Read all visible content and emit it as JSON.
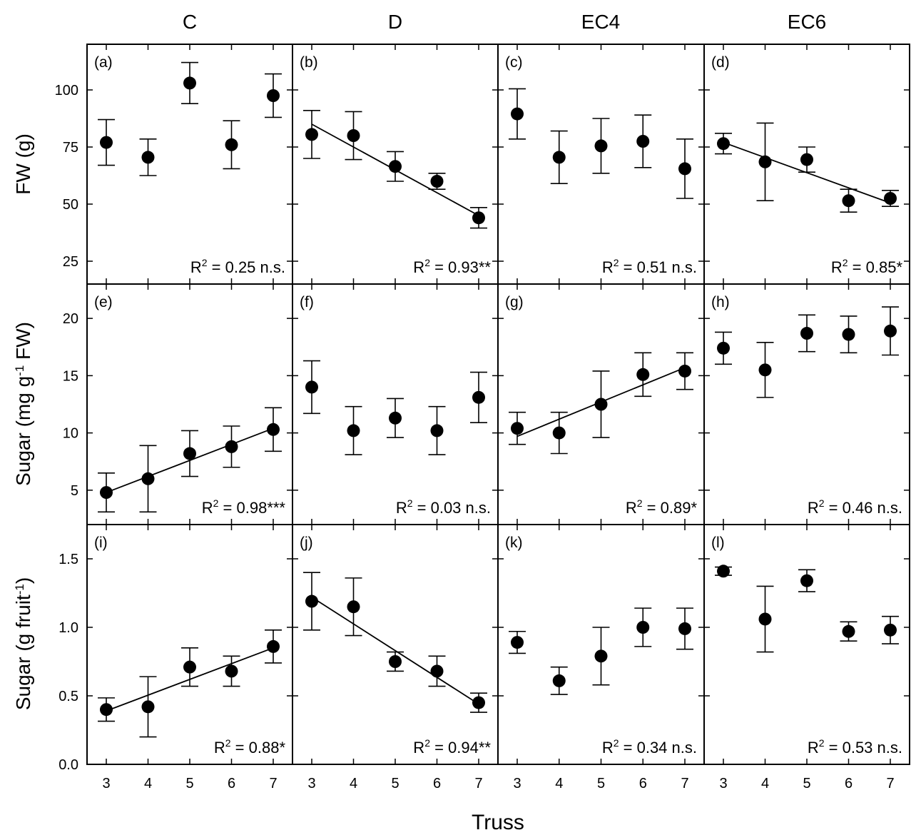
{
  "columns": [
    "C",
    "D",
    "EC4",
    "EC6"
  ],
  "x_axis": {
    "label": "Truss",
    "ticks": [
      3,
      4,
      5,
      6,
      7
    ]
  },
  "rows": [
    {
      "label": "FW (g)",
      "ylim": [
        15,
        120
      ],
      "ticks": [
        25,
        50,
        75,
        100
      ],
      "tick_labels": [
        "25",
        "50",
        "75",
        "100"
      ]
    },
    {
      "label_parts": [
        "Sugar (mg g",
        "-1",
        " FW)"
      ],
      "ylim": [
        2,
        23
      ],
      "ticks": [
        5,
        10,
        15,
        20
      ],
      "tick_labels": [
        "5",
        "10",
        "15",
        "20"
      ]
    },
    {
      "label_parts": [
        "Sugar (g fruit",
        "-1",
        ")"
      ],
      "ylim": [
        0,
        1.75
      ],
      "ticks": [
        0.0,
        0.5,
        1.0,
        1.5
      ],
      "tick_labels": [
        "0.0",
        "0.5",
        "1.0",
        "1.5"
      ]
    }
  ],
  "chart_data": [
    {
      "type": "scatter",
      "panel": "(a)",
      "column": "C",
      "ylabel": "FW (g)",
      "x": [
        3,
        4,
        5,
        6,
        7
      ],
      "y": [
        77,
        70.5,
        103,
        76,
        97.5
      ],
      "err": [
        10,
        8,
        9,
        10.5,
        9.5
      ],
      "fit": null,
      "r2_value": "= 0.25 n.s.",
      "r2_prefix": "R",
      "r2_sup": "2"
    },
    {
      "type": "scatter",
      "panel": "(b)",
      "column": "D",
      "ylabel": "FW (g)",
      "x": [
        3,
        4,
        5,
        6,
        7
      ],
      "y": [
        80.5,
        80,
        66.5,
        60,
        44
      ],
      "err": [
        10.5,
        10.5,
        6.5,
        3.5,
        4.5
      ],
      "fit": [
        [
          3,
          85
        ],
        [
          7,
          45
        ]
      ],
      "r2_value": "= 0.93**",
      "r2_prefix": "R",
      "r2_sup": "2"
    },
    {
      "type": "scatter",
      "panel": "(c)",
      "column": "EC4",
      "ylabel": "FW (g)",
      "x": [
        3,
        4,
        5,
        6,
        7
      ],
      "y": [
        89.5,
        70.5,
        75.5,
        77.5,
        65.5
      ],
      "err": [
        11,
        11.5,
        12,
        11.5,
        13
      ],
      "fit": null,
      "r2_value": "= 0.51 n.s.",
      "r2_prefix": "R",
      "r2_sup": "2"
    },
    {
      "type": "scatter",
      "panel": "(d)",
      "column": "EC6",
      "ylabel": "FW (g)",
      "x": [
        3,
        4,
        5,
        6,
        7
      ],
      "y": [
        76.5,
        68.5,
        69.5,
        51.5,
        52.5
      ],
      "err": [
        4.5,
        17,
        5.5,
        5,
        3.5
      ],
      "fit": [
        [
          3,
          77
        ],
        [
          7,
          50.5
        ]
      ],
      "r2_value": "= 0.85*",
      "r2_prefix": "R",
      "r2_sup": "2"
    },
    {
      "type": "scatter",
      "panel": "(e)",
      "column": "C",
      "ylabel": "Sugar (mg g-1 FW)",
      "x": [
        3,
        4,
        5,
        6,
        7
      ],
      "y": [
        4.8,
        6.0,
        8.2,
        8.8,
        10.3
      ],
      "err": [
        1.7,
        2.9,
        2.0,
        1.8,
        1.9
      ],
      "fit": [
        [
          3,
          4.8
        ],
        [
          7,
          10.4
        ]
      ],
      "r2_value": "= 0.98***",
      "r2_prefix": "R",
      "r2_sup": "2"
    },
    {
      "type": "scatter",
      "panel": "(f)",
      "column": "D",
      "ylabel": "Sugar (mg g-1 FW)",
      "x": [
        3,
        4,
        5,
        6,
        7
      ],
      "y": [
        14.0,
        10.2,
        11.3,
        10.2,
        13.1
      ],
      "err": [
        2.3,
        2.1,
        1.7,
        2.1,
        2.2
      ],
      "fit": null,
      "r2_value": "= 0.03 n.s.",
      "r2_prefix": "R",
      "r2_sup": "2"
    },
    {
      "type": "scatter",
      "panel": "(g)",
      "column": "EC4",
      "ylabel": "Sugar (mg g-1 FW)",
      "x": [
        3,
        4,
        5,
        6,
        7
      ],
      "y": [
        10.4,
        10.0,
        12.5,
        15.1,
        15.4
      ],
      "err": [
        1.4,
        1.8,
        2.9,
        1.9,
        1.6
      ],
      "fit": [
        [
          3,
          9.7
        ],
        [
          7,
          15.7
        ]
      ],
      "r2_value": "= 0.89*",
      "r2_prefix": "R",
      "r2_sup": "2"
    },
    {
      "type": "scatter",
      "panel": "(h)",
      "column": "EC6",
      "ylabel": "Sugar (mg g-1 FW)",
      "x": [
        3,
        4,
        5,
        6,
        7
      ],
      "y": [
        17.4,
        15.5,
        18.7,
        18.6,
        18.9
      ],
      "err": [
        1.4,
        2.4,
        1.6,
        1.6,
        2.1
      ],
      "fit": null,
      "r2_value": "= 0.46 n.s.",
      "r2_prefix": "R",
      "r2_sup": "2"
    },
    {
      "type": "scatter",
      "panel": "(i)",
      "column": "C",
      "ylabel": "Sugar (g fruit-1)",
      "x": [
        3,
        4,
        5,
        6,
        7
      ],
      "y": [
        0.4,
        0.42,
        0.71,
        0.68,
        0.86
      ],
      "err": [
        0.085,
        0.22,
        0.14,
        0.11,
        0.12
      ],
      "fit": [
        [
          3,
          0.39
        ],
        [
          7,
          0.85
        ]
      ],
      "r2_value": "= 0.88*",
      "r2_prefix": "R",
      "r2_sup": "2"
    },
    {
      "type": "scatter",
      "panel": "(j)",
      "column": "D",
      "ylabel": "Sugar (g fruit-1)",
      "x": [
        3,
        4,
        5,
        6,
        7
      ],
      "y": [
        1.19,
        1.15,
        0.75,
        0.68,
        0.45
      ],
      "err": [
        0.21,
        0.21,
        0.07,
        0.11,
        0.07
      ],
      "fit": [
        [
          3,
          1.22
        ],
        [
          7,
          0.44
        ]
      ],
      "r2_value": "= 0.94**",
      "r2_prefix": "R",
      "r2_sup": "2"
    },
    {
      "type": "scatter",
      "panel": "(k)",
      "column": "EC4",
      "ylabel": "Sugar (g fruit-1)",
      "x": [
        3,
        4,
        5,
        6,
        7
      ],
      "y": [
        0.89,
        0.61,
        0.79,
        1.0,
        0.99
      ],
      "err": [
        0.08,
        0.1,
        0.21,
        0.14,
        0.15
      ],
      "fit": null,
      "r2_value": "= 0.34 n.s.",
      "r2_prefix": "R",
      "r2_sup": "2"
    },
    {
      "type": "scatter",
      "panel": "(l)",
      "column": "EC6",
      "ylabel": "Sugar (g fruit-1)",
      "x": [
        3,
        4,
        5,
        6,
        7
      ],
      "y": [
        1.41,
        1.06,
        1.34,
        0.97,
        0.98
      ],
      "err": [
        0.03,
        0.24,
        0.08,
        0.07,
        0.1
      ],
      "fit": null,
      "r2_value": "= 0.53 n.s.",
      "r2_prefix": "R",
      "r2_sup": "2"
    }
  ]
}
